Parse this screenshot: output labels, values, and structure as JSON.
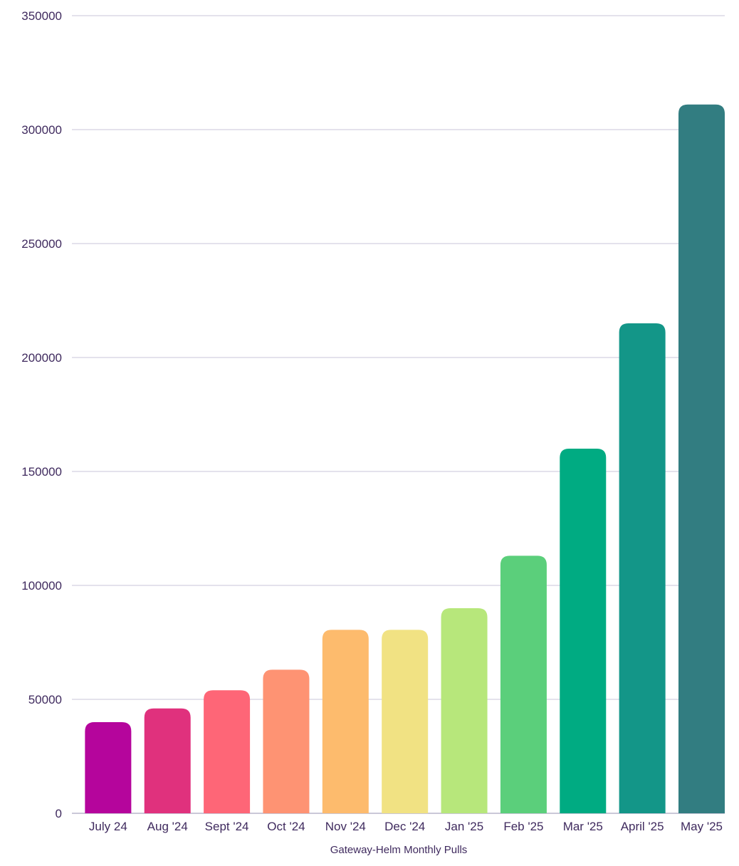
{
  "chart_data": {
    "type": "bar",
    "title": "",
    "xlabel": "Gateway-Helm Monthly Pulls",
    "ylabel": "",
    "ylim": [
      0,
      350000
    ],
    "yticks": [
      0,
      50000,
      100000,
      150000,
      200000,
      250000,
      300000,
      350000
    ],
    "ytick_labels": [
      "0",
      "50000",
      "100000",
      "150000",
      "200000",
      "250000",
      "300000",
      "350000"
    ],
    "grid": true,
    "categories": [
      "July 24",
      "Aug '24",
      "Sept '24",
      "Oct '24",
      "Nov '24",
      "Dec '24",
      "Jan '25",
      "Feb '25",
      "Mar '25",
      "April '25",
      "May '25"
    ],
    "values": [
      40000,
      46000,
      54000,
      63000,
      80500,
      80500,
      90000,
      113000,
      160000,
      215000,
      311000
    ],
    "colors": [
      "#b5059c",
      "#e0317d",
      "#fe6677",
      "#fe9373",
      "#fdbb6d",
      "#f1e283",
      "#b7e77b",
      "#5bcf7b",
      "#00ab82",
      "#139688",
      "#327d81"
    ]
  }
}
